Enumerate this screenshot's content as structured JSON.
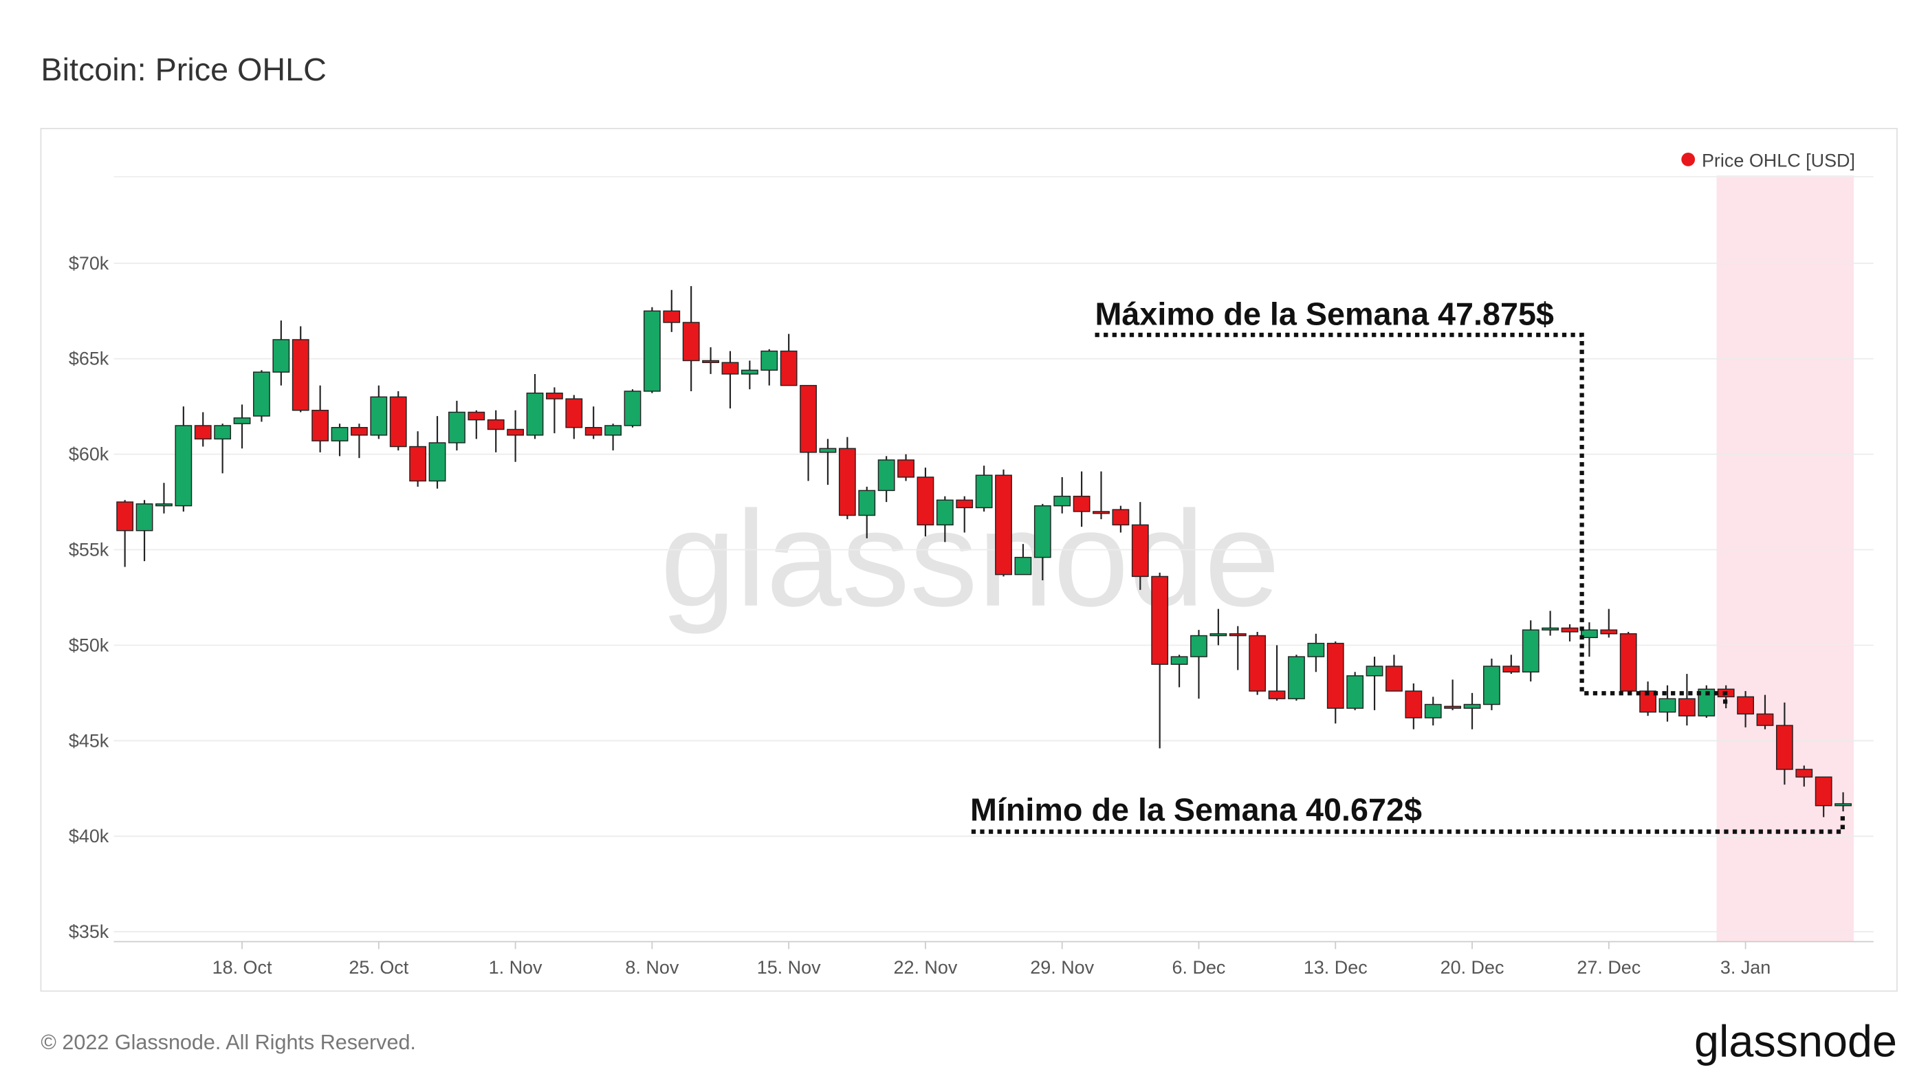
{
  "chart_data": {
    "type": "candlestick",
    "title": "Bitcoin: Price OHLC",
    "categories": [
      null,
      null,
      null,
      null,
      null,
      null,
      "18. Oct",
      null,
      null,
      null,
      null,
      null,
      null,
      "25. Oct",
      null,
      null,
      null,
      null,
      null,
      null,
      "1. Nov",
      null,
      null,
      null,
      null,
      null,
      null,
      "8. Nov",
      null,
      null,
      null,
      null,
      null,
      null,
      "15. Nov",
      null,
      null,
      null,
      null,
      null,
      null,
      "22. Nov",
      null,
      null,
      null,
      null,
      null,
      null,
      "29. Nov",
      null,
      null,
      null,
      null,
      null,
      null,
      "6. Dec",
      null,
      null,
      null,
      null,
      null,
      null,
      "13. Dec",
      null,
      null,
      null,
      null,
      null,
      null,
      "20. Dec",
      null,
      null,
      null,
      null,
      null,
      null,
      "27. Dec",
      null,
      null,
      null,
      null,
      null,
      null,
      "3. Jan",
      null,
      null,
      null,
      null,
      null
    ],
    "series": [
      {
        "name": "Price OHLC [USD]",
        "color": "#e8171b",
        "up_color": "#17a865",
        "open": [
          57500,
          56000,
          57300,
          57300,
          61500,
          60800,
          61600,
          62000,
          64300,
          66000,
          62300,
          60700,
          61400,
          61000,
          63000,
          60400,
          58600,
          60600,
          62200,
          61800,
          61300,
          61000,
          63200,
          62900,
          61400,
          61000,
          61500,
          63300,
          67500,
          66900,
          64900,
          64800,
          64200,
          64400,
          65400,
          63600,
          60100,
          60300,
          56800,
          58100,
          59700,
          58800,
          56300,
          57600,
          57200,
          58900,
          53700,
          54600,
          57300,
          57800,
          57000,
          57100,
          56300,
          53600,
          49000,
          49400,
          50500,
          50600,
          50500,
          47600,
          47200,
          49400,
          50100,
          46700,
          48400,
          48900,
          47600,
          46200,
          46800,
          46700,
          46900,
          48900,
          48600,
          50800,
          50900,
          50400,
          50800,
          50600,
          47600,
          46500,
          47200,
          46300,
          47700,
          47300,
          46400,
          45800,
          43500,
          43100,
          41600
        ],
        "high": [
          57600,
          57600,
          58500,
          62500,
          62200,
          61600,
          62600,
          64400,
          67000,
          66700,
          63600,
          61600,
          61600,
          63600,
          63300,
          61200,
          62000,
          62800,
          62300,
          62300,
          62300,
          64200,
          63500,
          63100,
          62500,
          61600,
          63400,
          67700,
          68600,
          68800,
          65600,
          65400,
          64900,
          65500,
          66300,
          63600,
          60800,
          60900,
          58300,
          59900,
          60000,
          59300,
          57800,
          57800,
          59400,
          59200,
          55300,
          57400,
          58800,
          59100,
          59100,
          57300,
          57500,
          53800,
          49500,
          50800,
          51900,
          51000,
          50700,
          50000,
          49500,
          50600,
          50200,
          48600,
          49400,
          49500,
          48000,
          47300,
          48200,
          47500,
          49300,
          49500,
          51300,
          51800,
          51100,
          51200,
          51900,
          50700,
          48100,
          47900,
          48500,
          47900,
          47900,
          47600,
          47400,
          47000,
          43700,
          43100,
          42300
        ],
        "low": [
          54100,
          54400,
          56900,
          57000,
          60400,
          59000,
          60300,
          61700,
          63600,
          62200,
          60100,
          59900,
          59800,
          60800,
          60200,
          58300,
          58200,
          60200,
          60800,
          60100,
          59600,
          60800,
          61100,
          60800,
          60800,
          60200,
          61400,
          63200,
          66400,
          63300,
          64200,
          62400,
          63400,
          63600,
          63600,
          58600,
          58400,
          56600,
          55600,
          57500,
          58600,
          55700,
          55400,
          55900,
          57000,
          53600,
          53700,
          53400,
          56900,
          56200,
          56600,
          55900,
          52900,
          44600,
          47800,
          47200,
          50000,
          48700,
          47400,
          47100,
          47100,
          48600,
          45900,
          46600,
          46600,
          47600,
          45600,
          45800,
          46600,
          45600,
          46600,
          48500,
          48100,
          50500,
          50200,
          49400,
          50400,
          47400,
          46300,
          46000,
          45800,
          46200,
          46700,
          45700,
          45600,
          42700,
          42600,
          41000,
          41300
        ],
        "close": [
          56000,
          57400,
          57400,
          61500,
          60800,
          61500,
          61900,
          64300,
          66000,
          62300,
          60700,
          61400,
          61000,
          63000,
          60400,
          58600,
          60600,
          62200,
          61800,
          61300,
          61000,
          63200,
          62900,
          61400,
          61000,
          61500,
          63300,
          67500,
          66900,
          64900,
          64800,
          64200,
          64400,
          65400,
          63600,
          60100,
          60300,
          56800,
          58100,
          59700,
          58800,
          56300,
          57600,
          57200,
          58900,
          53700,
          54600,
          57300,
          57800,
          57000,
          56900,
          56300,
          53600,
          49000,
          49400,
          50500,
          50600,
          50500,
          47600,
          47200,
          49400,
          50100,
          46700,
          48400,
          48900,
          47600,
          46200,
          46900,
          46700,
          46900,
          48900,
          48600,
          50800,
          50900,
          50700,
          50800,
          50600,
          47600,
          46500,
          47200,
          46300,
          47700,
          47300,
          46400,
          45800,
          43500,
          43100,
          41600,
          41700
        ]
      }
    ],
    "ylim": [
      34480,
      74530
    ],
    "yticks": [
      {
        "value": 35000,
        "label": "$35k"
      },
      {
        "value": 40000,
        "label": "$40k"
      },
      {
        "value": 45000,
        "label": "$45k"
      },
      {
        "value": 50000,
        "label": "$50k"
      },
      {
        "value": 55000,
        "label": "$55k"
      },
      {
        "value": 60000,
        "label": "$60k"
      },
      {
        "value": 65000,
        "label": "$65k"
      },
      {
        "value": 70000,
        "label": "$70k"
      }
    ],
    "grid": true,
    "annotations": [
      "Máximo de la Semana 47.875$",
      "Mínimo de la Semana 40.672$"
    ]
  },
  "watermark": "glassnode",
  "footer": {
    "copyright": "© 2022 Glassnode. All Rights Reserved.",
    "logo": "glassnode"
  }
}
